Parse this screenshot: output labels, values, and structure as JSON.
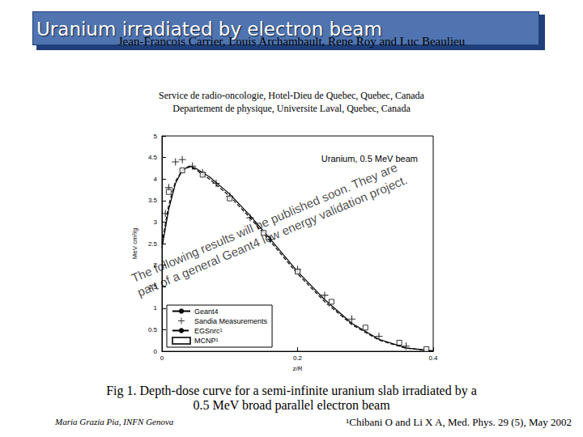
{
  "slide": {
    "title": "Uranium irradiated by electron beam",
    "authors": "Jean-Francois Carrier, Louis Archambault, Rene Roy and Luc Beaulieu",
    "affiliation": [
      "Service de radio-oncologie, Hotel-Dieu de Quebec, Quebec, Canada",
      "Departement de physique, Universite Laval, Quebec, Canada"
    ],
    "caption": [
      "Fig 1. Depth-dose curve for a semi-infinite uranium slab irradiated by a",
      "0.5 MeV broad parallel electron beam"
    ],
    "footer_left": "Maria Grazia Pia, INFN Genova",
    "footnote": "¹Chibani O and Li X A, Med. Phys. 29 (5), May 2002"
  },
  "chart_data": {
    "type": "line",
    "title": "Uranium, 0.5 MeV beam",
    "x_label": "z/R",
    "y_label": "MeV cm²/g",
    "annotations": [
      "The following results will be published soon. They are",
      "part of a general Geant4 low energy validation project."
    ],
    "xlim": [
      0,
      0.4
    ],
    "xticks": [
      0,
      0.2,
      0.4
    ],
    "ylim": [
      0,
      5
    ],
    "yticks": [
      0,
      0.5,
      1,
      1.5,
      2,
      2.5,
      3,
      3.5,
      4,
      4.5,
      5
    ],
    "grid": false,
    "legend": "bottom-left",
    "series": [
      {
        "name": "Geant4",
        "type": "line",
        "color": "#000000",
        "marker": "none",
        "line_style": "solid",
        "x": [
          0,
          0.01,
          0.02,
          0.03,
          0.04,
          0.05,
          0.07,
          0.1,
          0.13,
          0.16,
          0.2,
          0.24,
          0.28,
          0.32,
          0.36,
          0.4
        ],
        "values": [
          2.4,
          3.3,
          3.9,
          4.2,
          4.3,
          4.25,
          4.05,
          3.65,
          3.15,
          2.6,
          1.85,
          1.2,
          0.65,
          0.28,
          0.08,
          0.01
        ]
      },
      {
        "name": "Sandia Measurements",
        "type": "scatter",
        "color": "#000000",
        "marker": "plus",
        "x": [
          0.005,
          0.01,
          0.02,
          0.03,
          0.045,
          0.06,
          0.08,
          0.1,
          0.13,
          0.16,
          0.2,
          0.24,
          0.28,
          0.32,
          0.36
        ],
        "values": [
          3.2,
          3.8,
          4.4,
          4.45,
          4.3,
          4.15,
          3.9,
          3.6,
          3.1,
          2.6,
          1.9,
          1.3,
          0.75,
          0.35,
          0.12
        ]
      },
      {
        "name": "EGSnrc¹",
        "type": "line",
        "color": "#000000",
        "marker": "none",
        "line_style": "dashed",
        "x": [
          0,
          0.01,
          0.02,
          0.03,
          0.04,
          0.05,
          0.07,
          0.1,
          0.13,
          0.16,
          0.2,
          0.24,
          0.28,
          0.32,
          0.36,
          0.4
        ],
        "values": [
          2.5,
          3.4,
          3.95,
          4.2,
          4.28,
          4.22,
          4.0,
          3.6,
          3.1,
          2.55,
          1.8,
          1.15,
          0.62,
          0.26,
          0.07,
          0.01
        ]
      },
      {
        "name": "MCNP¹",
        "type": "scatter",
        "color": "#000000",
        "marker": "square",
        "x": [
          0.01,
          0.03,
          0.06,
          0.1,
          0.15,
          0.2,
          0.25,
          0.3,
          0.35,
          0.39
        ],
        "values": [
          3.7,
          4.2,
          4.1,
          3.55,
          2.75,
          1.85,
          1.15,
          0.55,
          0.2,
          0.05
        ]
      }
    ]
  }
}
